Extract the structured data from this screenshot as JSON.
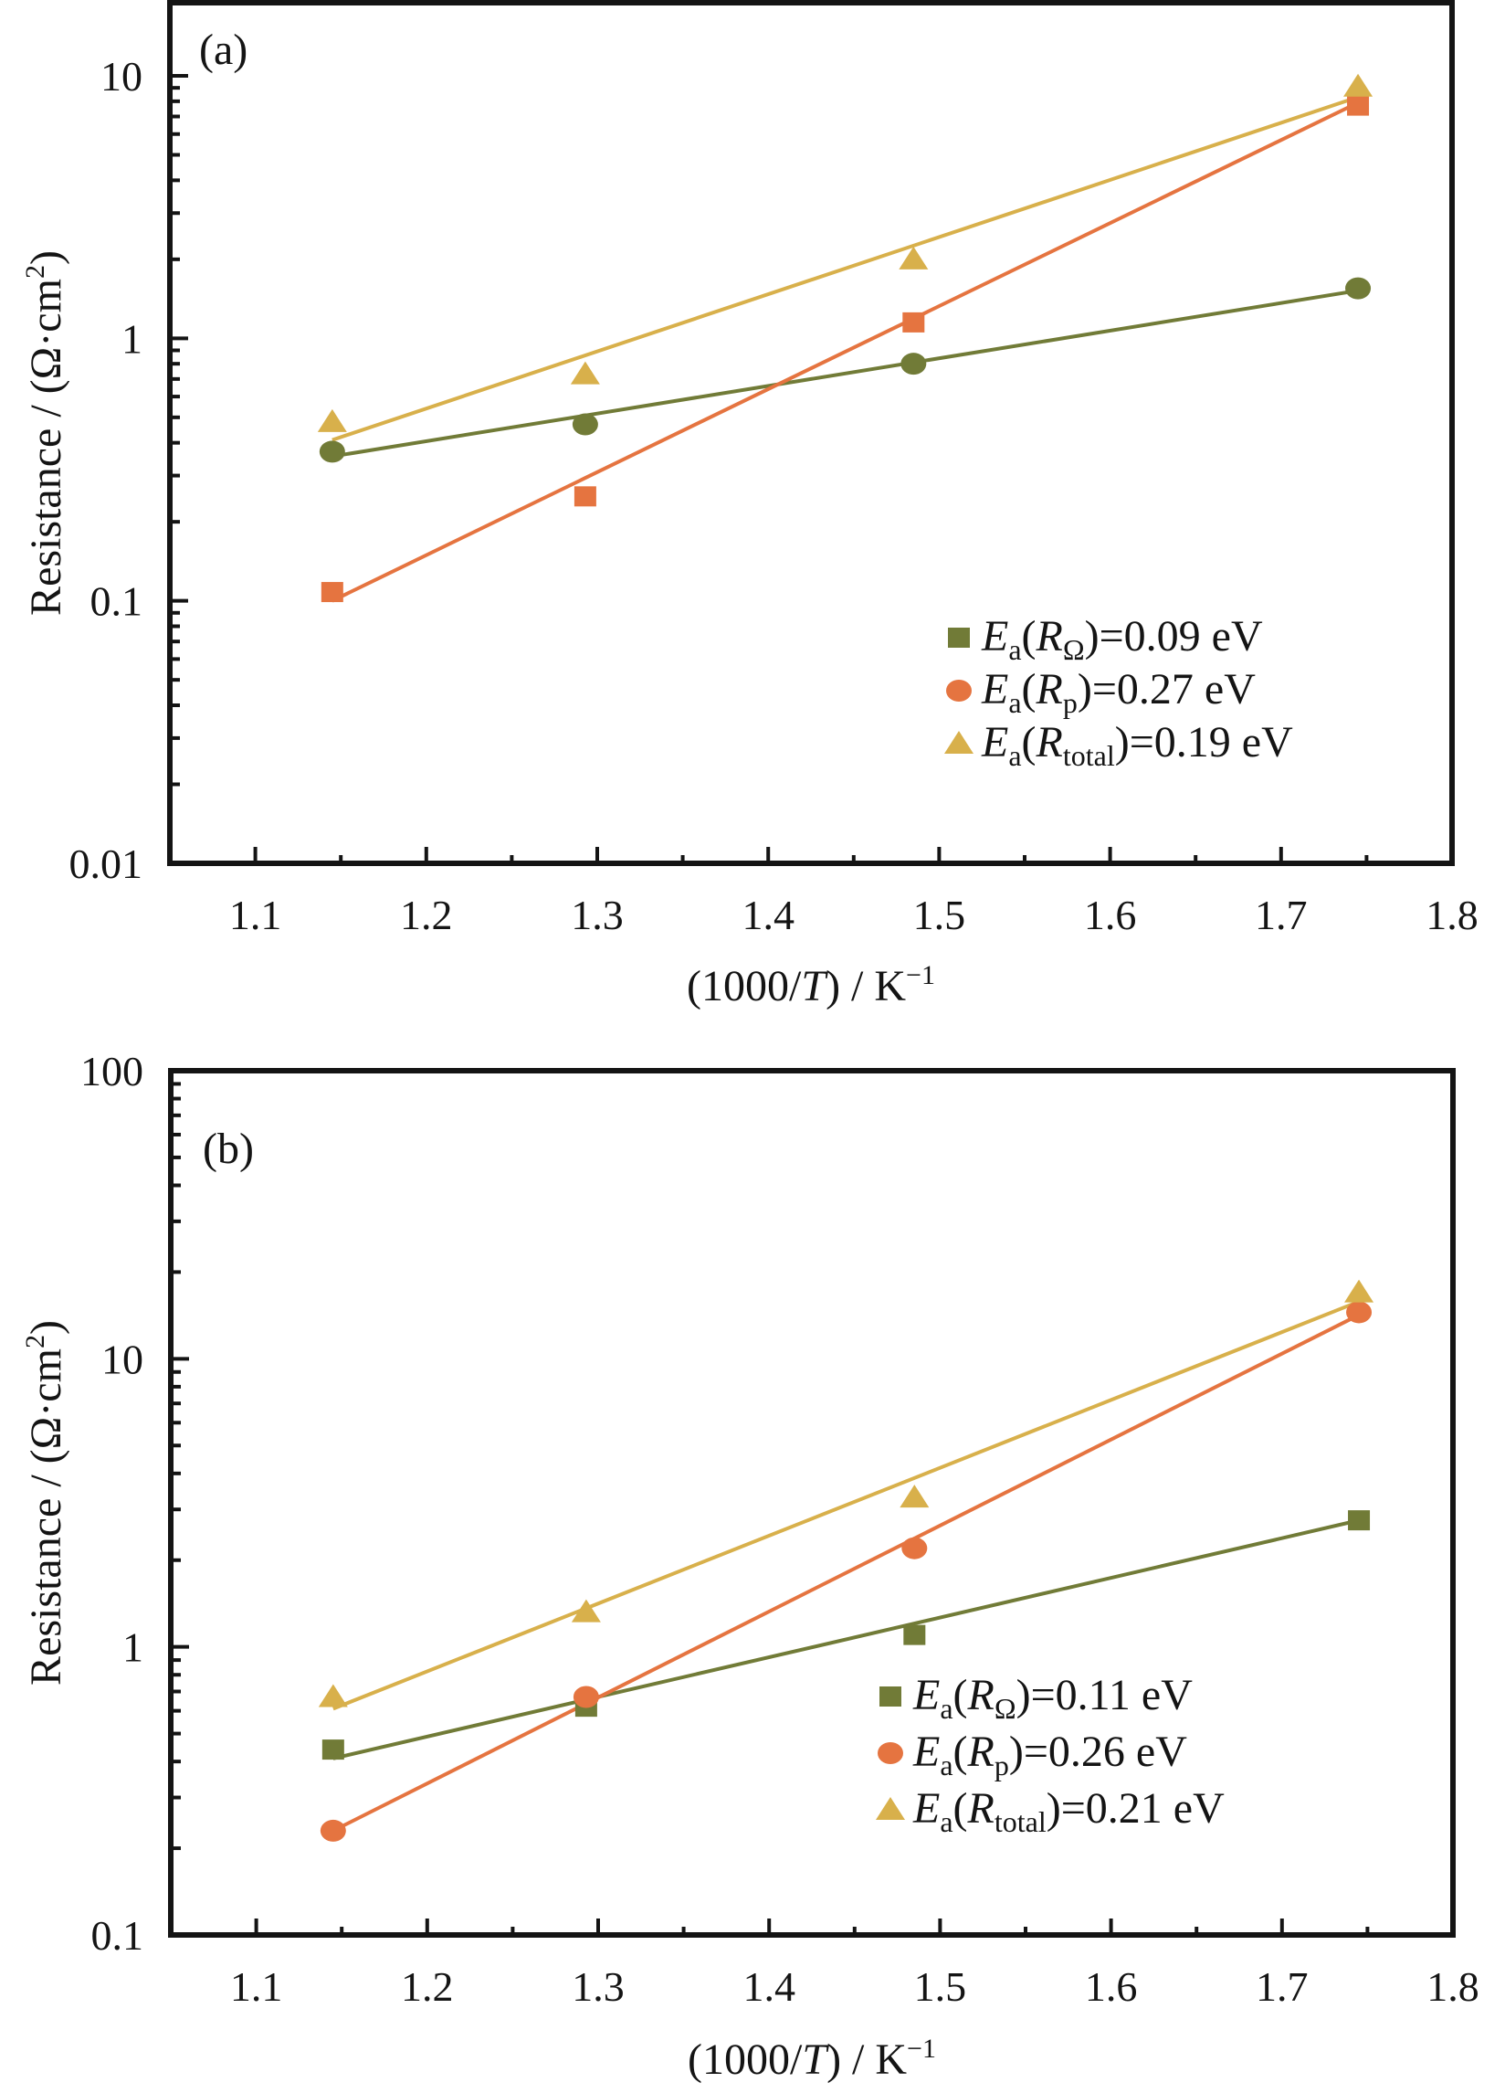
{
  "chart_data": [
    {
      "type": "scatter",
      "panel_label": "(a)",
      "xlabel": "(1000/T) / K⁻¹",
      "xlabel_parts": {
        "pre": "(1000/",
        "italic": "T",
        "post": ") / K",
        "sup": "−1"
      },
      "ylabel": "Resistance / (Ω·cm²)",
      "ylabel_parts": {
        "main": "Resistance / (Ω·cm",
        "sup": "2",
        "close": ")"
      },
      "xlim": [
        1.05,
        1.8
      ],
      "ylim": [
        0.01,
        20
      ],
      "yscale": "log",
      "x_ticks": [
        "1.1",
        "1.2",
        "1.3",
        "1.4",
        "1.5",
        "1.6",
        "1.7",
        "1.8"
      ],
      "y_ticks": [
        "0.01",
        "0.1",
        "1",
        "10"
      ],
      "legend_position": "bottom-right",
      "series": [
        {
          "name": "R_ohm",
          "label_sub": "Ω",
          "label_value": "=0.09 eV",
          "legend_marker": "square",
          "marker": "circle",
          "color": "#717b37",
          "x": [
            1.145,
            1.293,
            1.485,
            1.745
          ],
          "y": [
            0.37,
            0.47,
            0.8,
            1.55
          ],
          "fit": {
            "x": [
              1.145,
              1.745
            ],
            "y": [
              0.355,
              1.52
            ]
          }
        },
        {
          "name": "R_p",
          "label_sub": "p",
          "label_value": "=0.27 eV",
          "legend_marker": "circle",
          "marker": "square",
          "color": "#e57440",
          "x": [
            1.145,
            1.293,
            1.485,
            1.745
          ],
          "y": [
            0.108,
            0.25,
            1.15,
            7.7
          ],
          "fit": {
            "x": [
              1.145,
              1.745
            ],
            "y": [
              0.1,
              7.9
            ]
          }
        },
        {
          "name": "R_total",
          "label_sub": "total",
          "label_value": "=0.19 eV",
          "legend_marker": "triangle",
          "marker": "triangle",
          "color": "#d8b04b",
          "x": [
            1.145,
            1.293,
            1.485,
            1.745
          ],
          "y": [
            0.48,
            0.73,
            2.0,
            9.1
          ],
          "fit": {
            "x": [
              1.145,
              1.745
            ],
            "y": [
              0.41,
              8.3
            ]
          }
        }
      ]
    },
    {
      "type": "scatter",
      "panel_label": "(b)",
      "xlabel": "(1000/T) / K⁻¹",
      "xlabel_parts": {
        "pre": "(1000/",
        "italic": "T",
        "post": ") / K",
        "sup": "−1"
      },
      "ylabel": "Resistance / (Ω·cm²)",
      "ylabel_parts": {
        "main": "Resistance / (Ω·cm",
        "sup": "2",
        "close": ")"
      },
      "xlim": [
        1.05,
        1.8
      ],
      "ylim": [
        0.1,
        100
      ],
      "yscale": "log",
      "x_ticks": [
        "1.1",
        "1.2",
        "1.3",
        "1.4",
        "1.5",
        "1.6",
        "1.7",
        "1.8"
      ],
      "y_ticks": [
        "0.1",
        "1",
        "10",
        "100"
      ],
      "legend_position": "bottom-right",
      "series": [
        {
          "name": "R_ohm",
          "label_sub": "Ω",
          "label_value": "=0.11 eV",
          "legend_marker": "square",
          "marker": "square",
          "color": "#717b37",
          "x": [
            1.145,
            1.293,
            1.485,
            1.745
          ],
          "y": [
            0.44,
            0.62,
            1.1,
            2.75
          ],
          "fit": {
            "x": [
              1.145,
              1.745
            ],
            "y": [
              0.41,
              2.75
            ]
          }
        },
        {
          "name": "R_p",
          "label_sub": "p",
          "label_value": "=0.26 eV",
          "legend_marker": "circle",
          "marker": "circle",
          "color": "#e57440",
          "x": [
            1.145,
            1.293,
            1.485,
            1.745
          ],
          "y": [
            0.23,
            0.67,
            2.2,
            14.5
          ],
          "fit": {
            "x": [
              1.145,
              1.745
            ],
            "y": [
              0.23,
              14.2
            ]
          }
        },
        {
          "name": "R_total",
          "label_sub": "total",
          "label_value": "=0.21 eV",
          "legend_marker": "triangle",
          "marker": "triangle",
          "color": "#d8b04b",
          "x": [
            1.145,
            1.293,
            1.485,
            1.745
          ],
          "y": [
            0.67,
            1.32,
            3.3,
            17.0
          ],
          "fit": {
            "x": [
              1.145,
              1.745
            ],
            "y": [
              0.61,
              15.8
            ]
          }
        }
      ]
    }
  ],
  "legend_label_prefix": "E",
  "legend_label_prefix_sub": "a",
  "legend_label_R": "R"
}
